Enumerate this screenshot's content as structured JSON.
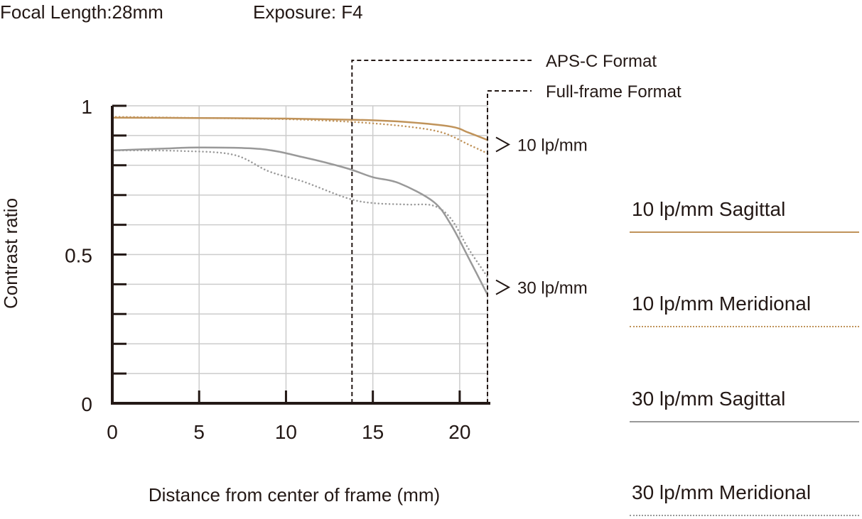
{
  "header": {
    "focal_length": "Focal Length:28mm",
    "exposure": "Exposure: F4"
  },
  "chart_data": {
    "type": "line",
    "xlabel": "Distance from center of frame (mm)",
    "ylabel": "Contrast ratio",
    "xlim": [
      0,
      21.6
    ],
    "ylim": [
      0,
      1
    ],
    "x_ticks": [
      0,
      5,
      10,
      15,
      20
    ],
    "y_tick_labels": [
      {
        "value": 1,
        "label": "1"
      },
      {
        "value": 0.5,
        "label": "0.5"
      },
      {
        "value": 0,
        "label": "0"
      }
    ],
    "grid": true,
    "series": [
      {
        "name": "10 lp/mm Sagittal",
        "color": "#c0935a",
        "style": "solid",
        "points": [
          [
            0,
            0.96
          ],
          [
            5,
            0.959
          ],
          [
            10,
            0.957
          ],
          [
            14,
            0.953
          ],
          [
            17,
            0.945
          ],
          [
            19.5,
            0.93
          ],
          [
            20.5,
            0.91
          ],
          [
            21.6,
            0.885
          ]
        ]
      },
      {
        "name": "10 lp/mm Meridional",
        "color": "#c0935a",
        "style": "dotted",
        "points": [
          [
            0,
            0.963
          ],
          [
            5,
            0.959
          ],
          [
            10,
            0.955
          ],
          [
            14,
            0.945
          ],
          [
            17,
            0.93
          ],
          [
            19,
            0.91
          ],
          [
            20.5,
            0.87
          ],
          [
            21.6,
            0.84
          ]
        ]
      },
      {
        "name": "30 lp/mm Sagittal",
        "color": "#999999",
        "style": "solid",
        "points": [
          [
            0,
            0.85
          ],
          [
            3,
            0.856
          ],
          [
            5,
            0.86
          ],
          [
            8.5,
            0.855
          ],
          [
            11,
            0.827
          ],
          [
            13.5,
            0.79
          ],
          [
            15,
            0.76
          ],
          [
            16.5,
            0.74
          ],
          [
            18.5,
            0.677
          ],
          [
            19.5,
            0.6
          ],
          [
            20.5,
            0.49
          ],
          [
            21.6,
            0.365
          ]
        ]
      },
      {
        "name": "30 lp/mm Meridional",
        "color": "#999999",
        "style": "dotted",
        "points": [
          [
            0,
            0.85
          ],
          [
            4,
            0.848
          ],
          [
            7,
            0.835
          ],
          [
            9,
            0.78
          ],
          [
            11,
            0.745
          ],
          [
            13.5,
            0.69
          ],
          [
            15,
            0.673
          ],
          [
            17,
            0.668
          ],
          [
            18.5,
            0.664
          ],
          [
            19.5,
            0.62
          ],
          [
            20.5,
            0.52
          ],
          [
            21.6,
            0.425
          ]
        ]
      }
    ],
    "annotations": [
      {
        "text": "APS-C Format",
        "x": 13.8
      },
      {
        "text": "Full-frame Format",
        "x": 21.6
      },
      {
        "text": "10 lp/mm",
        "y": 0.87
      },
      {
        "text": "30 lp/mm",
        "y": 0.39
      }
    ]
  },
  "legend": {
    "sag10": "10 lp/mm Sagittal",
    "mer10": "10 lp/mm Meridional",
    "sag30": "30 lp/mm Sagittal",
    "mer30": "30 lp/mm Meridional"
  }
}
